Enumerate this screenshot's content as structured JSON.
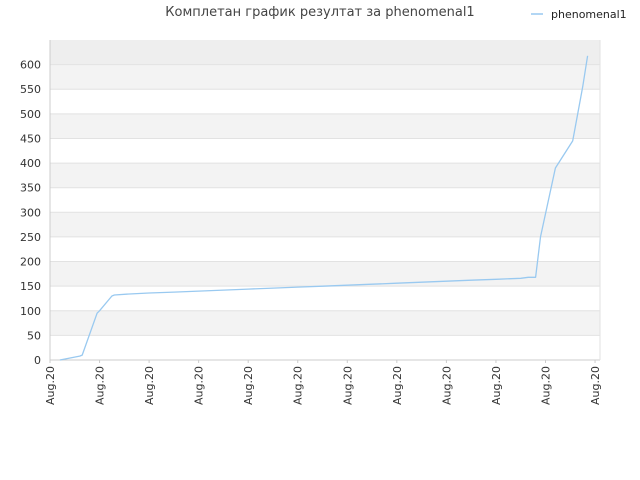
{
  "chart_data": {
    "type": "line",
    "title": "Комплетан график резултат за phenomenal1",
    "xlabel": "",
    "ylabel": "",
    "ylim": [
      0,
      650
    ],
    "yticks": [
      0,
      50,
      100,
      150,
      200,
      250,
      300,
      350,
      400,
      450,
      500,
      550,
      600
    ],
    "xtick_labels": [
      "Aug.20",
      "Aug.20",
      "Aug.20",
      "Aug.20",
      "Aug.20",
      "Aug.20",
      "Aug.20",
      "Aug.20",
      "Aug.20",
      "Aug.20",
      "Aug.20",
      "Aug.20"
    ],
    "grid": true,
    "legend_position": "top-right",
    "series": [
      {
        "name": "phenomenal1",
        "color": "#99c9f0",
        "x": [
          0.2,
          0.6,
          0.65,
          0.95,
          1.0,
          1.25,
          1.3,
          1.6,
          2.0,
          2.5,
          3.0,
          3.5,
          4.0,
          4.5,
          5.0,
          5.5,
          6.0,
          6.5,
          7.0,
          7.5,
          8.0,
          8.5,
          9.0,
          9.5,
          9.65,
          9.8,
          9.9,
          10.2,
          10.55,
          10.75,
          10.85
        ],
        "y": [
          0,
          8,
          10,
          95,
          100,
          130,
          132,
          134,
          136,
          138,
          140,
          142,
          144,
          146,
          148,
          150,
          152,
          154,
          156,
          158,
          160,
          162,
          164,
          166,
          168,
          168,
          250,
          390,
          445,
          555,
          618
        ]
      }
    ]
  }
}
